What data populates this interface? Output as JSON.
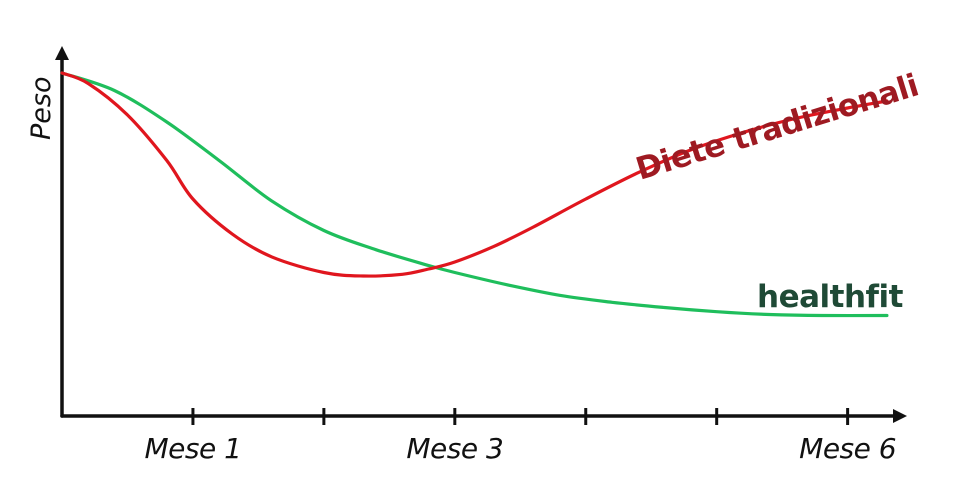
{
  "chart_data": {
    "type": "line",
    "title": "",
    "xlabel": "",
    "ylabel": "Peso",
    "xlim": [
      0,
      6.4
    ],
    "ylim": [
      0,
      10
    ],
    "grid": false,
    "legend": "none",
    "ticks": [
      {
        "x": 1,
        "label": "Mese 1"
      },
      {
        "x": 2,
        "label": ""
      },
      {
        "x": 3,
        "label": "Mese 3"
      },
      {
        "x": 4,
        "label": ""
      },
      {
        "x": 5,
        "label": ""
      },
      {
        "x": 6,
        "label": "Mese 6"
      }
    ],
    "series": [
      {
        "name": "Diete tradizionali",
        "color": "#e0161e",
        "label_color": "#9e1a22",
        "x": [
          0,
          0.2,
          0.5,
          0.8,
          1.0,
          1.3,
          1.6,
          2.0,
          2.3,
          2.6,
          2.8,
          3.0,
          3.3,
          3.6,
          4.0,
          4.4,
          4.8,
          5.2,
          5.6,
          6.0,
          6.3
        ],
        "values": [
          9.8,
          9.5,
          8.6,
          7.3,
          6.2,
          5.2,
          4.55,
          4.1,
          4.0,
          4.05,
          4.2,
          4.4,
          4.85,
          5.4,
          6.2,
          6.95,
          7.6,
          8.1,
          8.5,
          8.8,
          9.0
        ]
      },
      {
        "name": "healthfit",
        "color": "#1fbe5c",
        "label_color": "#1f4a36",
        "x": [
          0,
          0.4,
          0.8,
          1.2,
          1.6,
          2.0,
          2.4,
          2.8,
          3.0,
          3.4,
          3.8,
          4.2,
          4.6,
          5.0,
          5.4,
          5.8,
          6.3
        ],
        "values": [
          9.8,
          9.3,
          8.4,
          7.3,
          6.15,
          5.3,
          4.75,
          4.3,
          4.1,
          3.75,
          3.45,
          3.25,
          3.1,
          2.98,
          2.9,
          2.87,
          2.87
        ]
      }
    ]
  }
}
